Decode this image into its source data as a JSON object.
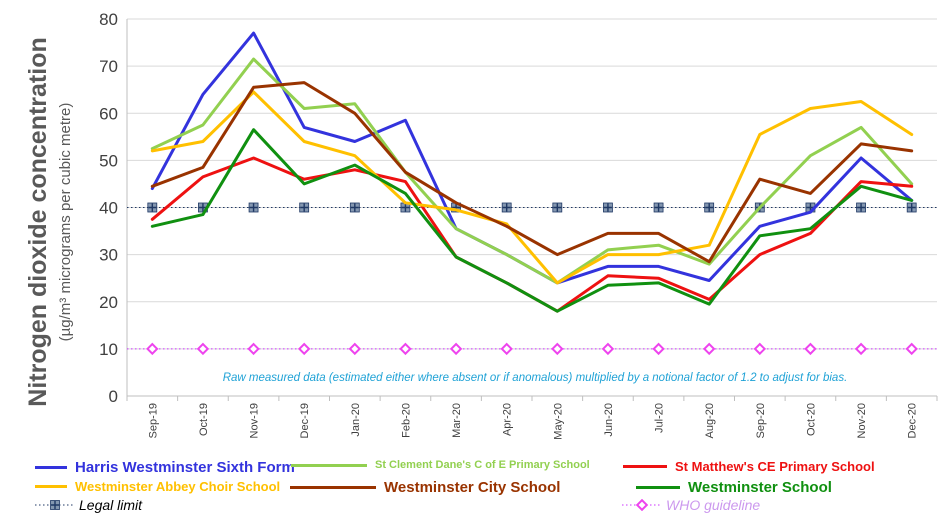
{
  "chart_data": {
    "type": "line",
    "ylabel": "Nitrogen dioxide concentration",
    "ylabel_sub": "(µg/m³ micrograms per cubic metre)",
    "ylim": [
      0,
      80
    ],
    "yticks": [
      0,
      10,
      20,
      30,
      40,
      50,
      60,
      70,
      80
    ],
    "grid": true,
    "categories": [
      "Sep-19",
      "Oct-19",
      "Nov-19",
      "Dec-19",
      "Jan-20",
      "Feb-20",
      "Mar-20",
      "Apr-20",
      "May-20",
      "Jun-20",
      "Jul-20",
      "Aug-20",
      "Sep-20",
      "Oct-20",
      "Nov-20",
      "Dec-20"
    ],
    "annotation": "Raw measured data (estimated either where absent or if anomalous) multiplied by a notional factor of 1.2 to adjust for bias.",
    "series": [
      {
        "name": "Harris Westminster Sixth Form",
        "color": "#3333dd",
        "values": [
          44,
          64,
          77,
          57,
          54,
          58.5,
          35.5,
          30,
          24,
          27.5,
          27.5,
          24.5,
          36,
          39,
          50.5,
          41.5
        ]
      },
      {
        "name": "St Clement Dane's C of E Primary School",
        "color": "#92d050",
        "values": [
          52.5,
          57.5,
          71.5,
          61,
          62,
          47.5,
          35.5,
          30,
          24,
          31,
          32,
          28,
          40,
          51,
          57,
          45
        ]
      },
      {
        "name": "St Matthew's CE Primary School",
        "color": "#ee1111",
        "values": [
          37.5,
          46.5,
          50.5,
          46,
          48,
          45.5,
          29.5,
          24,
          18,
          25.5,
          25,
          20.5,
          30,
          34.5,
          45.5,
          44.5
        ]
      },
      {
        "name": "Westminster Abbey Choir School",
        "color": "#ffc000",
        "values": [
          52,
          54,
          64.5,
          54,
          51,
          41,
          39.5,
          36.5,
          24,
          30,
          30,
          32,
          55.5,
          61,
          62.5,
          55.5
        ]
      },
      {
        "name": "Westminster City School",
        "color": "#993300",
        "values": [
          44.5,
          48.5,
          65.5,
          66.5,
          60,
          47.5,
          41,
          36,
          30,
          34.5,
          34.5,
          28.5,
          46,
          43,
          53.5,
          52
        ]
      },
      {
        "name": "Westminster School",
        "color": "#109010",
        "values": [
          36,
          38.5,
          56.5,
          45,
          49,
          43,
          29.5,
          24,
          18,
          23.5,
          24,
          19.5,
          34,
          35.5,
          44.5,
          41.5
        ]
      }
    ],
    "reference_lines": [
      {
        "name": "Legal limit",
        "color": "#1f3864",
        "marker_color": "#8497b0",
        "value": 40
      },
      {
        "name": "WHO guideline",
        "color": "#cc33ff",
        "marker_color": "#ee44ee",
        "value": 10
      }
    ]
  }
}
